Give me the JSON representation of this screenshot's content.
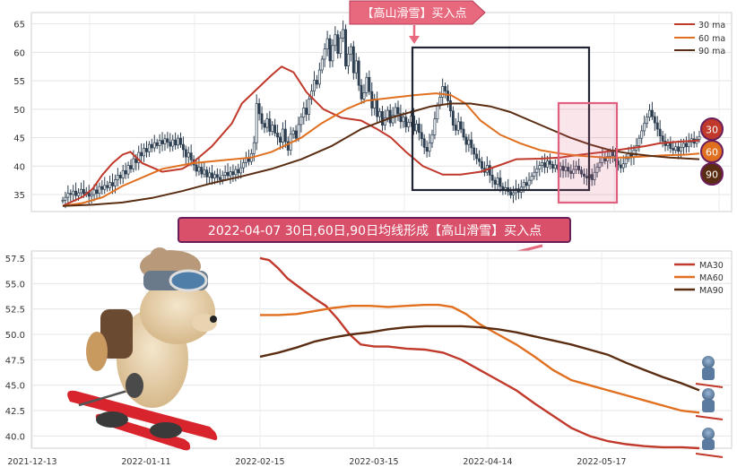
{
  "top_banner": {
    "text": "【高山滑雪】买入点"
  },
  "mid_banner": {
    "text": "2022-04-07 30日,60日,90日均线形成【高山滑雪】买入点"
  },
  "badges": [
    "30",
    "60",
    "90"
  ],
  "colors": {
    "ma30": "#c0392b",
    "ma60": "#e07020",
    "ma90": "#5a2d12",
    "candle": "#2c3e50",
    "box": "#1f2430",
    "pink_box": "#e06080",
    "banner_fill": "#e8697e",
    "mid_banner_fill": "#d9506a",
    "badge_stroke": "#6a1f5a"
  },
  "chart_data": [
    {
      "type": "candlestick",
      "title": "",
      "ylim": [
        32,
        67
      ],
      "yticks": [
        35,
        40,
        45,
        50,
        55,
        60,
        65
      ],
      "grid": true,
      "legend": {
        "position": "top-right",
        "entries": [
          "30 ma",
          "60 ma",
          "90 ma"
        ]
      },
      "close": [
        34.0,
        34.5,
        35.2,
        35.0,
        35.6,
        34.8,
        35.3,
        35.9,
        35.1,
        35.4,
        34.7,
        35.0,
        35.8,
        35.2,
        36.4,
        35.9,
        36.6,
        36.2,
        37.1,
        36.5,
        37.6,
        38.4,
        37.9,
        39.2,
        38.6,
        40.1,
        39.5,
        41.3,
        40.6,
        42.4,
        41.8,
        43.1,
        42.5,
        43.8,
        43.2,
        44.1,
        43.6,
        44.5,
        43.9,
        44.8,
        44.2,
        43.5,
        44.6,
        43.7,
        44.9,
        43.8,
        42.9,
        41.6,
        42.3,
        41.1,
        40.2,
        39.1,
        39.8,
        38.6,
        39.3,
        38.1,
        38.8,
        37.9,
        38.5,
        38.0,
        37.6,
        38.4,
        38.9,
        38.3,
        39.0,
        38.5,
        39.4,
        38.8,
        39.7,
        40.6,
        41.4,
        40.8,
        42.2,
        44.1,
        51.0,
        49.2,
        47.5,
        46.8,
        48.3,
        46.1,
        47.2,
        45.8,
        45.1,
        44.2,
        46.5,
        44.3,
        42.8,
        45.6,
        46.2,
        44.9,
        47.3,
        48.6,
        50.2,
        49.1,
        51.8,
        53.2,
        55.1,
        54.4,
        56.9,
        58.8,
        60.6,
        62.4,
        58.5,
        61.2,
        63.1,
        59.8,
        62.5,
        64.0,
        57.6,
        59.7,
        61.0,
        56.4,
        58.5,
        54.2,
        51.8,
        52.9,
        55.6,
        53.1,
        50.2,
        51.8,
        48.7,
        49.6,
        47.2,
        48.5,
        49.8,
        47.6,
        48.9,
        50.3,
        49.2,
        47.8,
        48.6,
        46.9,
        47.7,
        48.8,
        46.2,
        47.4,
        45.9,
        44.8,
        43.3,
        42.6,
        44.1,
        45.5,
        48.3,
        50.6,
        52.1,
        54.0,
        53.2,
        51.5,
        49.7,
        47.2,
        46.3,
        47.8,
        46.5,
        45.1,
        43.8,
        44.6,
        43.2,
        42.1,
        41.3,
        40.8,
        39.6,
        38.9,
        40.1,
        38.4,
        37.5,
        36.8,
        37.9,
        36.4,
        35.8,
        36.2,
        35.5,
        34.9,
        35.3,
        36.0,
        35.4,
        36.3,
        37.1,
        36.6,
        37.5,
        38.2,
        38.9,
        39.5,
        40.1,
        40.6,
        39.8,
        40.9,
        40.3,
        39.6,
        40.2,
        39.4,
        40.0,
        39.2,
        39.8,
        39.1,
        38.7,
        39.4,
        40.0,
        39.3,
        38.6,
        38.2,
        37.9,
        38.5,
        37.6,
        38.9,
        39.8,
        40.6,
        41.5,
        40.9,
        41.7,
        42.5,
        41.8,
        40.9,
        40.2,
        39.7,
        40.4,
        41.3,
        42.2,
        41.5,
        42.8,
        43.6,
        44.9,
        46.2,
        47.5,
        48.6,
        49.8,
        48.7,
        47.6,
        46.5,
        45.3,
        44.4,
        43.6,
        44.2,
        43.1,
        42.8,
        43.4,
        42.6,
        43.3,
        44.0,
        43.4,
        44.2,
        44.8,
        44.0,
        44.7,
        45.2
      ],
      "ma_series": [
        {
          "name": "30 ma",
          "points": [
            [
              0,
              33.0
            ],
            [
              10,
              33.8
            ],
            [
              20,
              34.6
            ],
            [
              30,
              36.0
            ],
            [
              40,
              38.5
            ],
            [
              50,
              40.5
            ],
            [
              60,
              42.0
            ],
            [
              68,
              42.5
            ],
            [
              80,
              40.5
            ],
            [
              100,
              39.0
            ],
            [
              120,
              39.5
            ],
            [
              130,
              40.5
            ],
            [
              150,
              43.5
            ],
            [
              170,
              47.5
            ],
            [
              180,
              51.0
            ],
            [
              195,
              53.5
            ],
            [
              210,
              56.0
            ],
            [
              220,
              57.5
            ],
            [
              232,
              56.5
            ],
            [
              245,
              53.0
            ],
            [
              262,
              50.0
            ],
            [
              280,
              48.5
            ],
            [
              300,
              48.0
            ],
            [
              316,
              46.5
            ],
            [
              330,
              45.0
            ],
            [
              345,
              42.5
            ],
            [
              362,
              40.0
            ],
            [
              382,
              38.5
            ],
            [
              400,
              38.5
            ],
            [
              420,
              39.0
            ],
            [
              440,
              40.2
            ],
            [
              456,
              41.2
            ],
            [
              480,
              41.3
            ],
            [
              500,
              41.5
            ],
            [
              520,
              42.0
            ],
            [
              545,
              42.5
            ],
            [
              565,
              43.0
            ],
            [
              585,
              43.5
            ],
            [
              600,
              44.0
            ],
            [
              620,
              44.3
            ],
            [
              640,
              44.5
            ]
          ]
        },
        {
          "name": "60 ma",
          "points": [
            [
              0,
              33.0
            ],
            [
              20,
              33.5
            ],
            [
              40,
              34.5
            ],
            [
              60,
              36.5
            ],
            [
              80,
              38.0
            ],
            [
              100,
              39.5
            ],
            [
              130,
              40.5
            ],
            [
              160,
              41.0
            ],
            [
              190,
              41.5
            ],
            [
              210,
              42.5
            ],
            [
              240,
              45.0
            ],
            [
              260,
              47.5
            ],
            [
              285,
              50.0
            ],
            [
              305,
              51.5
            ],
            [
              330,
              52.0
            ],
            [
              355,
              52.5
            ],
            [
              375,
              52.8
            ],
            [
              390,
              52.5
            ],
            [
              405,
              51.0
            ],
            [
              420,
              48.0
            ],
            [
              440,
              45.5
            ],
            [
              460,
              44.0
            ],
            [
              480,
              42.8
            ],
            [
              500,
              42.2
            ],
            [
              520,
              41.8
            ],
            [
              545,
              41.5
            ],
            [
              565,
              41.5
            ],
            [
              585,
              41.7
            ],
            [
              605,
              41.9
            ],
            [
              625,
              42.0
            ],
            [
              640,
              42.2
            ]
          ]
        },
        {
          "name": "90 ma",
          "points": [
            [
              0,
              33.0
            ],
            [
              30,
              33.2
            ],
            [
              60,
              33.6
            ],
            [
              90,
              34.4
            ],
            [
              120,
              35.6
            ],
            [
              150,
              37.0
            ],
            [
              180,
              38.2
            ],
            [
              210,
              39.5
            ],
            [
              240,
              41.2
            ],
            [
              270,
              43.5
            ],
            [
              300,
              46.5
            ],
            [
              330,
              48.5
            ],
            [
              350,
              49.5
            ],
            [
              370,
              50.5
            ],
            [
              390,
              51.0
            ],
            [
              410,
              51.0
            ],
            [
              430,
              50.5
            ],
            [
              450,
              49.5
            ],
            [
              470,
              48.0
            ],
            [
              490,
              46.5
            ],
            [
              510,
              45.0
            ],
            [
              530,
              43.8
            ],
            [
              550,
              42.8
            ],
            [
              570,
              42.2
            ],
            [
              590,
              41.8
            ],
            [
              610,
              41.5
            ],
            [
              630,
              41.3
            ],
            [
              640,
              41.2
            ]
          ]
        }
      ]
    },
    {
      "type": "line",
      "title": "",
      "ylim": [
        38.8,
        58.2
      ],
      "yticks": [
        40.0,
        42.5,
        45.0,
        47.5,
        50.0,
        52.5,
        55.0,
        57.5
      ],
      "xticks": [
        "2021-12-13",
        "2022-01-11",
        "2022-02-15",
        "2022-03-15",
        "2022-04-14",
        "2022-05-17"
      ],
      "grid": true,
      "legend": {
        "position": "top-right",
        "entries": [
          "MA30",
          "MA60",
          "MA90"
        ]
      },
      "series": [
        {
          "name": "MA30",
          "points": [
            [
              0,
              57.5
            ],
            [
              10,
              57.3
            ],
            [
              20,
              56.5
            ],
            [
              30,
              55.5
            ],
            [
              45,
              54.5
            ],
            [
              60,
              53.5
            ],
            [
              72,
              52.8
            ],
            [
              85,
              51.5
            ],
            [
              98,
              50.0
            ],
            [
              110,
              49.0
            ],
            [
              125,
              48.8
            ],
            [
              140,
              48.8
            ],
            [
              160,
              48.6
            ],
            [
              180,
              48.5
            ],
            [
              200,
              48.2
            ],
            [
              220,
              47.5
            ],
            [
              240,
              46.5
            ],
            [
              260,
              45.5
            ],
            [
              280,
              44.5
            ],
            [
              300,
              43.2
            ],
            [
              320,
              42.0
            ],
            [
              340,
              40.8
            ],
            [
              360,
              40.0
            ],
            [
              380,
              39.5
            ],
            [
              400,
              39.2
            ],
            [
              420,
              39.0
            ],
            [
              440,
              38.9
            ],
            [
              460,
              38.9
            ],
            [
              480,
              38.8
            ]
          ]
        },
        {
          "name": "MA60",
          "points": [
            [
              0,
              51.9
            ],
            [
              20,
              51.9
            ],
            [
              40,
              52.0
            ],
            [
              60,
              52.3
            ],
            [
              80,
              52.6
            ],
            [
              100,
              52.8
            ],
            [
              120,
              52.8
            ],
            [
              140,
              52.7
            ],
            [
              160,
              52.8
            ],
            [
              180,
              52.9
            ],
            [
              195,
              52.9
            ],
            [
              210,
              52.7
            ],
            [
              225,
              52.0
            ],
            [
              240,
              51.0
            ],
            [
              260,
              50.0
            ],
            [
              280,
              49.0
            ],
            [
              300,
              47.8
            ],
            [
              320,
              46.5
            ],
            [
              340,
              45.5
            ],
            [
              360,
              45.0
            ],
            [
              380,
              44.5
            ],
            [
              400,
              44.0
            ],
            [
              420,
              43.5
            ],
            [
              440,
              43.0
            ],
            [
              460,
              42.5
            ],
            [
              480,
              42.3
            ]
          ]
        },
        {
          "name": "MA90",
          "points": [
            [
              0,
              47.8
            ],
            [
              20,
              48.2
            ],
            [
              40,
              48.7
            ],
            [
              60,
              49.3
            ],
            [
              80,
              49.7
            ],
            [
              100,
              50.0
            ],
            [
              120,
              50.2
            ],
            [
              140,
              50.5
            ],
            [
              160,
              50.7
            ],
            [
              180,
              50.8
            ],
            [
              200,
              50.8
            ],
            [
              220,
              50.8
            ],
            [
              240,
              50.7
            ],
            [
              260,
              50.5
            ],
            [
              280,
              50.2
            ],
            [
              300,
              49.8
            ],
            [
              320,
              49.4
            ],
            [
              340,
              49.0
            ],
            [
              360,
              48.5
            ],
            [
              380,
              48.0
            ],
            [
              400,
              47.2
            ],
            [
              420,
              46.5
            ],
            [
              440,
              45.8
            ],
            [
              460,
              45.2
            ],
            [
              480,
              44.5
            ]
          ]
        }
      ]
    }
  ]
}
